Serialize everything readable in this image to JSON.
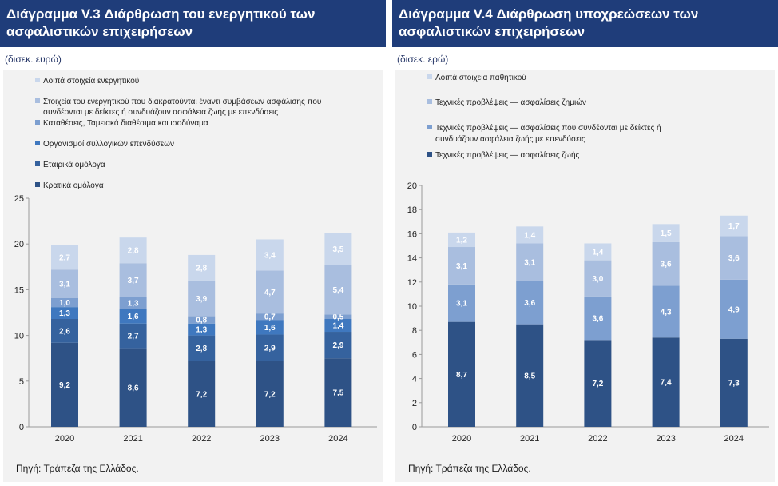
{
  "charts": [
    {
      "title_line1": "Διάγραμμα V.3 Διάρθρωση του ενεργητικού των",
      "title_line2": "ασφαλιστικών επιχειρήσεων",
      "unit": "(δισεκ. ευρώ)",
      "source": "Πηγή: Τράπεζα της Ελλάδος."
    },
    {
      "title_line1": "Διάγραμμα V.4 Διάρθρωση υποχρεώσεων των",
      "title_line2": "ασφαλιστικών επιχειρήσεων",
      "unit": "(δισεκ. ερώ)",
      "source": "Πηγή: Τράπεζα της Ελλάδος."
    }
  ],
  "chart_data": [
    {
      "type": "bar",
      "stacked": true,
      "categories": [
        "2020",
        "2021",
        "2022",
        "2023",
        "2024"
      ],
      "ylim": [
        0,
        25
      ],
      "yticks": [
        0,
        5,
        10,
        15,
        20,
        25
      ],
      "legend_placement": "top-left",
      "series": [
        {
          "name": "Κρατικά ομόλογα",
          "color": "#2e5286",
          "label_color": "#ffffff",
          "values": [
            9.2,
            8.6,
            7.2,
            7.2,
            7.5
          ],
          "labels": [
            "9,2",
            "8,6",
            "7,2",
            "7,2",
            "7,5"
          ]
        },
        {
          "name": "Εταιρικά ομόλογα",
          "color": "#35629e",
          "label_color": "#ffffff",
          "values": [
            2.6,
            2.7,
            2.8,
            2.9,
            2.9
          ],
          "labels": [
            "2,6",
            "2,7",
            "2,8",
            "2,9",
            "2,9"
          ]
        },
        {
          "name": "Οργανισμοί συλλογικών επενδύσεων",
          "color": "#3f78bf",
          "label_color": "#ffffff",
          "values": [
            1.3,
            1.6,
            1.3,
            1.6,
            1.4
          ],
          "labels": [
            "1,3",
            "1,6",
            "1,3",
            "1,6",
            "1,4"
          ]
        },
        {
          "name": "Καταθέσεις, Ταμειακά διαθέσιμα και ισοδύναμα",
          "color": "#7d9fd0",
          "label_color": "#ffffff",
          "values": [
            1.0,
            1.3,
            0.8,
            0.7,
            0.5
          ],
          "labels": [
            "1,0",
            "1,3",
            "0,8",
            "0,7",
            "0,5"
          ]
        },
        {
          "name": "Στοιχεία του ενεργητικού που διακρατούνται έναντι συμβάσεων ασφάλισης που συνδέονται με δείκτες ή συνδυάζουν ασφάλεια ζωής με επενδύσεις",
          "color": "#a9bedf",
          "label_color": "#ffffff",
          "values": [
            3.1,
            3.7,
            3.9,
            4.7,
            5.4
          ],
          "labels": [
            "3,1",
            "3,7",
            "3,9",
            "4,7",
            "5,4"
          ]
        },
        {
          "name": "Λοιπά στοιχεία ενεργητικού",
          "color": "#c9d7ec",
          "label_color": "#ffffff",
          "values": [
            2.7,
            2.8,
            2.8,
            3.4,
            3.5
          ],
          "labels": [
            "2,7",
            "2,8",
            "2,8",
            "3,4",
            "3,5"
          ]
        }
      ]
    },
    {
      "type": "bar",
      "stacked": true,
      "categories": [
        "2020",
        "2021",
        "2022",
        "2023",
        "2024"
      ],
      "ylim": [
        0,
        20
      ],
      "yticks": [
        0,
        2,
        4,
        6,
        8,
        10,
        12,
        14,
        16,
        18,
        20
      ],
      "legend_placement": "top-left",
      "series": [
        {
          "name": "Τεχνικές προβλέψεις — ασφαλίσεις ζωής",
          "color": "#2e5286",
          "label_color": "#ffffff",
          "values": [
            8.7,
            8.5,
            7.2,
            7.4,
            7.3
          ],
          "labels": [
            "8,7",
            "8,5",
            "7,2",
            "7,4",
            "7,3"
          ]
        },
        {
          "name": "Τεχνικές προβλέψεις — ασφαλίσεις που συνδέονται με δείκτες ή συνδυάζουν ασφάλεια ζωής με επενδύσεις",
          "color": "#7d9fd0",
          "label_color": "#ffffff",
          "values": [
            3.1,
            3.6,
            3.6,
            4.3,
            4.9
          ],
          "labels": [
            "3,1",
            "3,6",
            "3,6",
            "4,3",
            "4,9"
          ]
        },
        {
          "name": "Τεχνικές προβλέψεις — ασφαλίσεις ζημιών",
          "color": "#a9bedf",
          "label_color": "#ffffff",
          "values": [
            3.1,
            3.1,
            3.0,
            3.6,
            3.6
          ],
          "labels": [
            "3,1",
            "3,1",
            "3,0",
            "3,6",
            "3,6"
          ]
        },
        {
          "name": "Λοιπά στοιχεία παθητικού",
          "color": "#c9d7ec",
          "label_color": "#ffffff",
          "values": [
            1.2,
            1.4,
            1.4,
            1.5,
            1.7
          ],
          "labels": [
            "1,2",
            "1,4",
            "1,4",
            "1,5",
            "1,7"
          ]
        }
      ]
    }
  ]
}
